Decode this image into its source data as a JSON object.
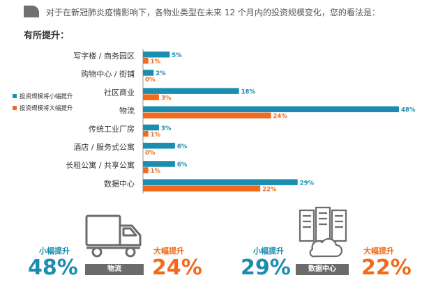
{
  "question": {
    "text": "对于在新冠肺炎疫情影响下，各物业类型在未来 12 个月内的投资规模变化，您的看法是："
  },
  "section_title": "有所提升：",
  "colors": {
    "small_increase": "#1a8db0",
    "large_increase": "#f26a1b",
    "tag_bg": "#6b6b6b"
  },
  "chart_data": {
    "type": "bar",
    "orientation": "horizontal",
    "categories": [
      "写字楼 / 商务园区",
      "购物中心 / 街铺",
      "社区商业",
      "物流",
      "传统工业厂房",
      "酒店 / 服务式公寓",
      "长租公寓 / 共享公寓",
      "数据中心"
    ],
    "series": [
      {
        "name": "投资规模将小幅提升",
        "values": [
          5,
          2,
          18,
          48,
          3,
          6,
          6,
          29
        ],
        "labels": [
          "5%",
          "2%",
          "18%",
          "48%",
          "3%",
          "6%",
          "6%",
          "29%"
        ]
      },
      {
        "name": "投资规模将大幅提升",
        "values": [
          1,
          0,
          3,
          24,
          1,
          0,
          1,
          22
        ],
        "labels": [
          "1%",
          "0%",
          "3%",
          "24%",
          "1%",
          "0%",
          "1%",
          "22%"
        ]
      }
    ],
    "xlim": [
      0,
      48
    ],
    "legend_position": "left",
    "grid": false
  },
  "highlights": [
    {
      "icon": "truck-icon",
      "tag": "物流",
      "small_label": "小幅提升",
      "small_value": "48%",
      "large_label": "大幅提升",
      "large_value": "24%"
    },
    {
      "icon": "data-center-icon",
      "tag": "数据中心",
      "small_label": "小幅提升",
      "small_value": "29%",
      "large_label": "大幅提升",
      "large_value": "22%"
    }
  ]
}
